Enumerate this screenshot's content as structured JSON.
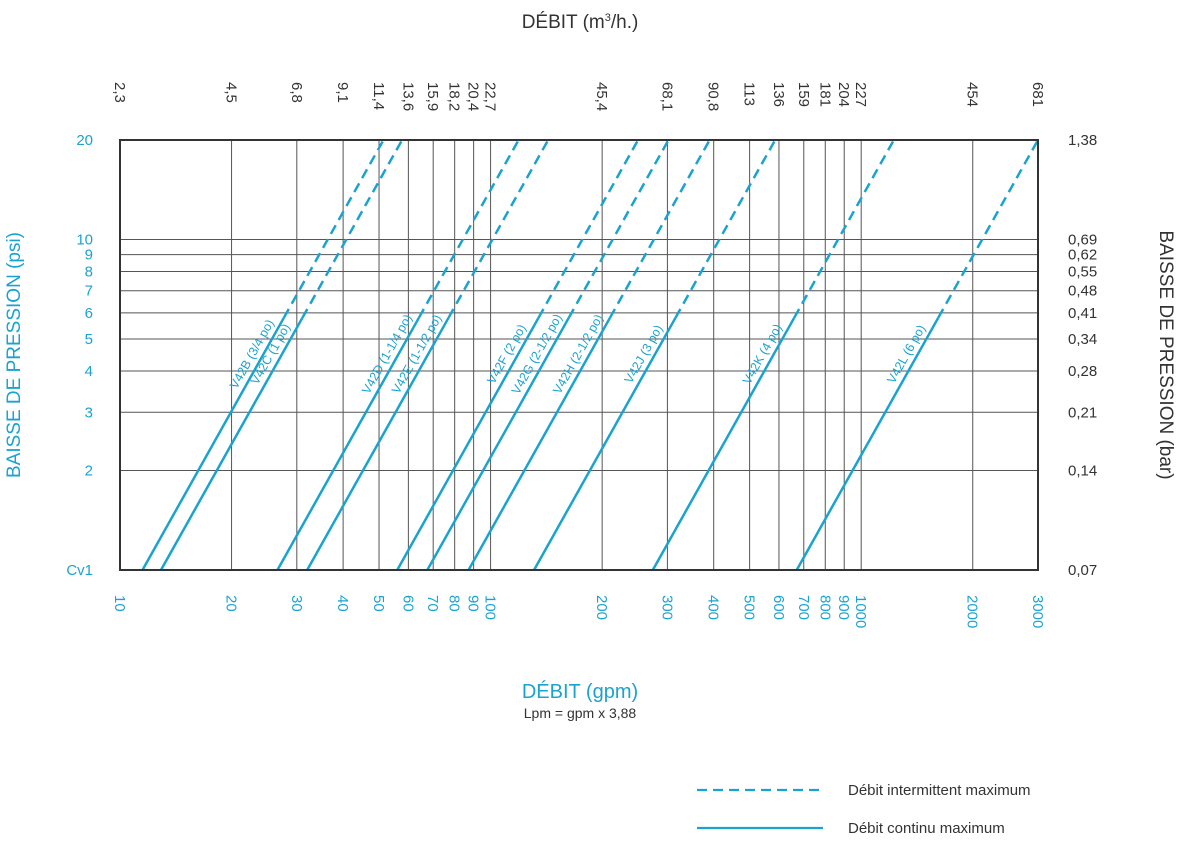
{
  "colors": {
    "accent": "#1ba3cf",
    "frame": "#333333",
    "grid": "#555555"
  },
  "chart_data": {
    "type": "line",
    "scale": "log-log",
    "grid": true,
    "title": "",
    "top_axis_label": "DÉBIT (m",
    "top_axis_label_sup": "3",
    "top_axis_label_end": "/h.)",
    "x_ticks_top": [
      "2,3",
      "4,5",
      "6,8",
      "9,1",
      "11,4",
      "13,6",
      "15,9",
      "18,2",
      "20,4",
      "22,7",
      "45,4",
      "68,1",
      "90,8",
      "113",
      "136",
      "159",
      "181",
      "204",
      "227",
      "454",
      "681"
    ],
    "x_ticks_bottom": [
      "10",
      "20",
      "30",
      "40",
      "50",
      "60",
      "70",
      "80",
      "90",
      "100",
      "200",
      "300",
      "400",
      "500",
      "600",
      "700",
      "800",
      "900",
      "1000",
      "2000",
      "3000"
    ],
    "xlabel": "DÉBIT (gpm)",
    "xlabel_note": "Lpm = gpm x 3,88",
    "xlim": [
      10,
      3000
    ],
    "ylabel_left": "BAISSE DE PRESSION (psi)",
    "ylabel_right": "BAISSE DE PRESSION (bar)",
    "y_ticks_left": [
      "Cv1",
      "2",
      "3",
      "4",
      "5",
      "6",
      "7",
      "8",
      "9",
      "10",
      "20"
    ],
    "y_ticks_right": [
      "0,07",
      "0,14",
      "0,21",
      "0,28",
      "0,34",
      "0,41",
      "0,48",
      "0,55",
      "0,62",
      "0,69",
      "1,38"
    ],
    "ylim": [
      1,
      20
    ],
    "series": [
      {
        "name": "V42B (3/4 po)",
        "flow_at_1psi": 11.5,
        "flow_at_20psi": 51.4,
        "continuous_to_psi": 5.8
      },
      {
        "name": "V42C (1 po)",
        "flow_at_1psi": 12.9,
        "flow_at_20psi": 57.7,
        "continuous_to_psi": 5.8
      },
      {
        "name": "V42D (1-1/4 po)",
        "flow_at_1psi": 26.6,
        "flow_at_20psi": 119,
        "continuous_to_psi": 5.8
      },
      {
        "name": "V42E (1-1/2 po)",
        "flow_at_1psi": 32.0,
        "flow_at_20psi": 143,
        "continuous_to_psi": 5.8
      },
      {
        "name": "V42F (2 po)",
        "flow_at_1psi": 56.0,
        "flow_at_20psi": 250,
        "continuous_to_psi": 5.8
      },
      {
        "name": "V42G (2-1/2 po)",
        "flow_at_1psi": 67.5,
        "flow_at_20psi": 302,
        "continuous_to_psi": 5.8
      },
      {
        "name": "V42H (2-1/2 po)",
        "flow_at_1psi": 87.2,
        "flow_at_20psi": 390,
        "continuous_to_psi": 5.8
      },
      {
        "name": "V42J (3 po)",
        "flow_at_1psi": 131,
        "flow_at_20psi": 586,
        "continuous_to_psi": 5.8
      },
      {
        "name": "V42K (4 po)",
        "flow_at_1psi": 274,
        "flow_at_20psi": 1225,
        "continuous_to_psi": 5.8
      },
      {
        "name": "V42L (6 po)",
        "flow_at_1psi": 670,
        "flow_at_20psi": 3000,
        "continuous_to_psi": 5.8
      }
    ],
    "legend_placement": "bottom-right",
    "legend": [
      {
        "style": "dashed",
        "label": "Débit intermittent maximum"
      },
      {
        "style": "solid",
        "label": "Débit continu maximum"
      }
    ]
  }
}
